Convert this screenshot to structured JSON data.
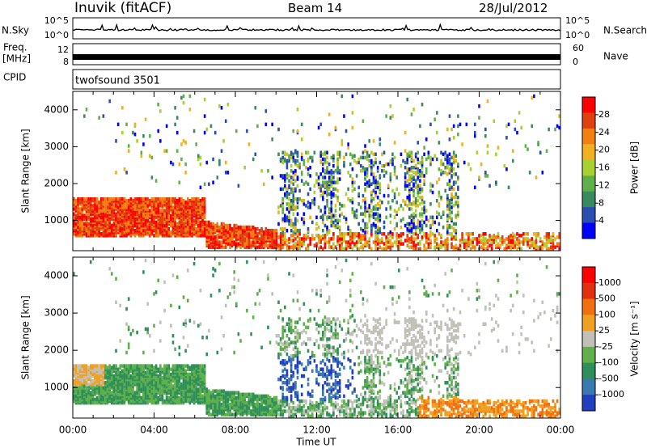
{
  "header": {
    "station": "Inuvik (fitACF)",
    "beam": "Beam 14",
    "date": "28/Jul/2012"
  },
  "summary_labels": {
    "nsky": "N.Sky",
    "nsearch": "N.Search",
    "freq_line1": "Freq.",
    "freq_line2": "[MHz]",
    "nave": "Nave",
    "cpid": "CPID",
    "cpid_value": "twofsound 3501",
    "noise_ticks": [
      "10^5",
      "10^0"
    ],
    "freq_ticks": [
      "12",
      "8"
    ],
    "nave_ticks": [
      "60",
      "0"
    ]
  },
  "colors": {
    "power_scale": [
      "#0000ff",
      "#2a4fb0",
      "#3a8a60",
      "#5fb04a",
      "#a8d030",
      "#f0b020",
      "#f08010",
      "#e04010",
      "#ff0000"
    ],
    "velocity_scale": [
      "#2040c0",
      "#3a7ab0",
      "#2f8f5a",
      "#5fb04a",
      "#c0c0b8",
      "#f0a020",
      "#f07010",
      "#e03010",
      "#ff0000"
    ]
  },
  "chart_data": [
    {
      "type": "heatmap",
      "panel": "power",
      "ylabel": "Slant Range [km]",
      "ylim": [
        180,
        4500
      ],
      "yticks": [
        1000,
        2000,
        3000,
        4000
      ],
      "xlim": [
        0,
        24
      ],
      "colorbar": {
        "label": "Power [dB]",
        "ticks": [
          28,
          24,
          20,
          16,
          12,
          8,
          4
        ],
        "range": [
          0,
          32
        ]
      }
    },
    {
      "type": "heatmap",
      "panel": "velocity",
      "ylabel": "Slant Range [km]",
      "xlabel": "Time UT",
      "ylim": [
        180,
        4500
      ],
      "yticks": [
        1000,
        2000,
        3000,
        4000
      ],
      "xlim": [
        0,
        24
      ],
      "xtick_labels": [
        "00:00",
        "04:00",
        "08:00",
        "12:00",
        "16:00",
        "20:00",
        "00:00"
      ],
      "colorbar": {
        "label": "Velocity [m s⁻¹]",
        "ticks": [
          "1000",
          "500",
          "100",
          "25",
          "-25",
          "-100",
          "-500",
          "-1000"
        ]
      }
    }
  ]
}
